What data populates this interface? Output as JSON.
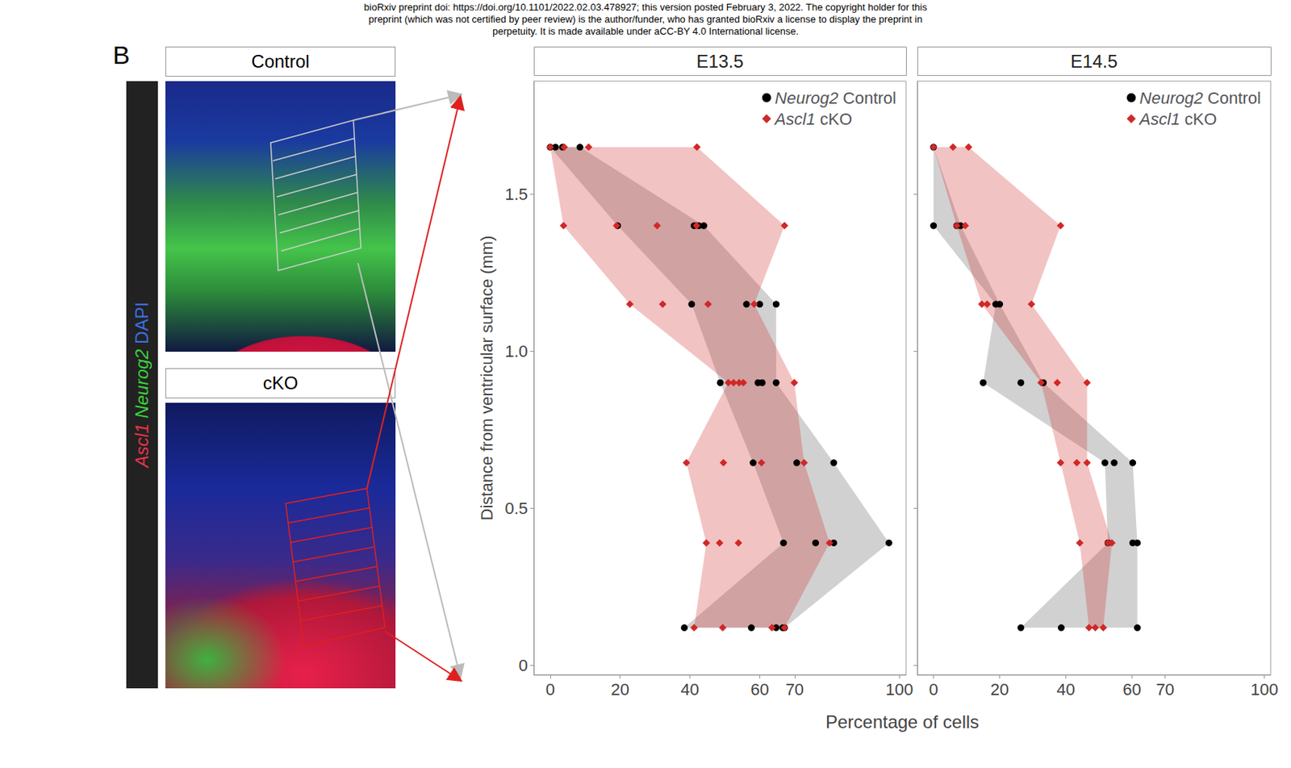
{
  "watermark": [
    "bioRxiv preprint doi: https://doi.org/10.1101/2022.02.03.478927; this version posted February 3, 2022. The copyright holder for this",
    "preprint (which was not certified by peer review) is the author/funder, who has granted bioRxiv a license to display the preprint in",
    "perpetuity. It is made available under aCC-BY 4.0 International license."
  ],
  "panel_label": "B",
  "image_panels": [
    {
      "title": "Control"
    },
    {
      "title": "cKO"
    }
  ],
  "stain_labels": [
    {
      "text": "Ascl1",
      "color": "#e8354a"
    },
    {
      "text": "Neurog2",
      "color": "#3bd13b"
    },
    {
      "text": "DAPI",
      "color": "#3a6fe0"
    }
  ],
  "xlabel": "Percentage of cells",
  "ylabel": "Distance from ventricular surface (mm)",
  "chart_data": [
    {
      "type": "scatter",
      "title": "E13.5",
      "xlim": [
        -4.7,
        101.9
      ],
      "xticks": [
        0,
        20,
        40,
        60,
        70,
        100
      ],
      "ylim": [
        -0.03,
        1.86
      ],
      "yticks": [
        0,
        0.5,
        {
          "value": 1,
          "label": "1.0"
        },
        1.5
      ],
      "grid": false,
      "legend": "upper right",
      "tick_labels": true,
      "series": [
        {
          "name": "Neurog2 Control",
          "color": "#000000",
          "marker": "circle",
          "x": [
            0,
            1.5,
            3.5,
            8.5,
            19.3,
            41.2,
            42.6,
            44,
            40.5,
            56.2,
            60,
            64.7,
            48.7,
            59.5,
            60.7,
            64.7,
            58.1,
            70.6,
            81.2,
            66.8,
            76,
            81.2,
            97,
            38.4,
            57.6,
            64.7,
            66.6,
            67.1
          ],
          "y": [
            1.65,
            1.65,
            1.65,
            1.65,
            1.4,
            1.4,
            1.4,
            1.4,
            1.15,
            1.15,
            1.15,
            1.15,
            0.9,
            0.9,
            0.9,
            0.9,
            0.645,
            0.645,
            0.645,
            0.39,
            0.39,
            0.39,
            0.39,
            0.12,
            0.12,
            0.12,
            0.12,
            0.12
          ]
        },
        {
          "name": "Ascl1 cKO",
          "color": "#d02828",
          "marker": "diamond",
          "x": [
            0,
            4,
            11,
            42,
            3.8,
            19,
            30.6,
            41.9,
            67.1,
            22.8,
            32.2,
            45.2,
            58.4,
            51,
            52.5,
            54.1,
            55.3,
            69.9,
            39,
            49.6,
            60.5,
            72.7,
            44.7,
            48.5,
            53.9,
            80,
            41.2,
            49.4,
            63.5,
            67.1
          ],
          "y": [
            1.65,
            1.65,
            1.65,
            1.65,
            1.4,
            1.4,
            1.4,
            1.4,
            1.4,
            1.15,
            1.15,
            1.15,
            1.15,
            0.9,
            0.9,
            0.9,
            0.9,
            0.9,
            0.645,
            0.645,
            0.645,
            0.645,
            0.39,
            0.39,
            0.39,
            0.39,
            0.12,
            0.12,
            0.12,
            0.12
          ]
        }
      ]
    },
    {
      "type": "scatter",
      "title": "E14.5",
      "xlim": [
        -4.9,
        101.9
      ],
      "xticks": [
        0,
        20,
        40,
        60,
        70,
        100
      ],
      "ylim": [
        -0.03,
        1.86
      ],
      "yticks": [
        0,
        0.5,
        {
          "value": 1,
          "label": "1.0"
        },
        1.5
      ],
      "grid": false,
      "legend": "upper right",
      "tick_labels": "x",
      "series": [
        {
          "name": "Neurog2 Control",
          "color": "#000000",
          "marker": "circle",
          "x": [
            0,
            0,
            7,
            8.2,
            18.8,
            20,
            15,
            26.4,
            33.2,
            51.8,
            54.6,
            60.2,
            52.7,
            60.2,
            61.6,
            26.4,
            38.6,
            61.6
          ],
          "y": [
            1.65,
            1.4,
            1.4,
            1.4,
            1.15,
            1.15,
            0.9,
            0.9,
            0.9,
            0.645,
            0.645,
            0.645,
            0.39,
            0.39,
            0.39,
            0.12,
            0.12,
            0.12
          ]
        },
        {
          "name": "Ascl1 cKO",
          "color": "#d02828",
          "marker": "diamond",
          "x": [
            0,
            5.9,
            10.6,
            7,
            9.6,
            38.4,
            14.6,
            16.2,
            29.6,
            32.5,
            37.4,
            46.4,
            38.4,
            43.3,
            46.4,
            44.2,
            52.7,
            53.9,
            47,
            48.9,
            51.3
          ],
          "y": [
            1.65,
            1.65,
            1.65,
            1.4,
            1.4,
            1.4,
            1.15,
            1.15,
            1.15,
            0.9,
            0.9,
            0.9,
            0.645,
            0.645,
            0.645,
            0.39,
            0.39,
            0.39,
            0.12,
            0.12,
            0.12
          ]
        }
      ]
    }
  ]
}
